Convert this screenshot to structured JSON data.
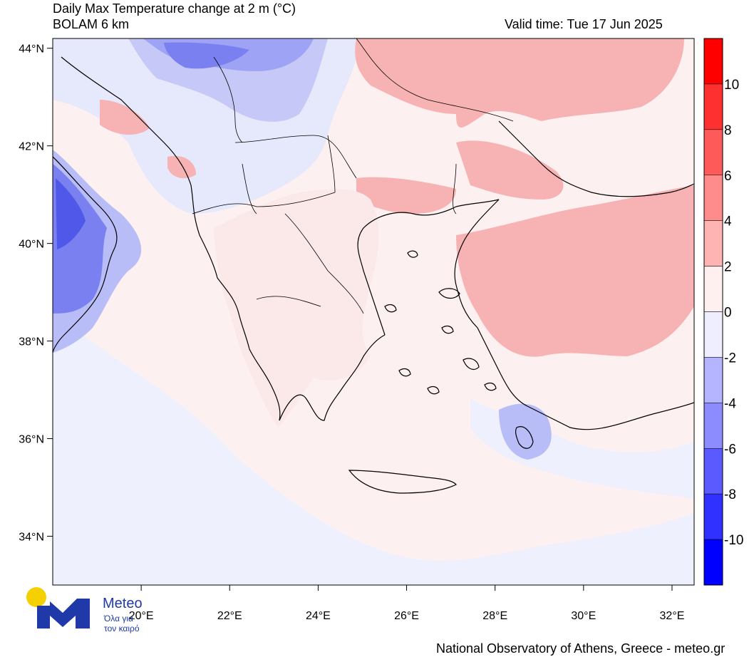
{
  "header": {
    "title_prefix": "Daily Max Temperature change at 2 m (",
    "title_unit": "°C",
    "title_suffix": ")",
    "model": "BOLAM 6 km",
    "valid_time": "Valid time: Tue 17 Jun 2025"
  },
  "footer": {
    "credit": "National Observatory of Athens, Greece - meteo.gr"
  },
  "logo": {
    "name": "Meteo",
    "tagline_1": "Όλα για",
    "tagline_2": "τον καιρό",
    "accent_color": "#1f3aa8",
    "sun_color": "#f5d000"
  },
  "map": {
    "lon_range": [
      18,
      32.5
    ],
    "lat_range": [
      33,
      44.2
    ],
    "lat_ticks": [
      {
        "value": 44,
        "label": "44°N"
      },
      {
        "value": 42,
        "label": "42°N"
      },
      {
        "value": 40,
        "label": "40°N"
      },
      {
        "value": 38,
        "label": "38°N"
      },
      {
        "value": 36,
        "label": "36°N"
      },
      {
        "value": 34,
        "label": "34°N"
      }
    ],
    "lon_ticks": [
      {
        "value": 20,
        "label": "20°E"
      },
      {
        "value": 22,
        "label": "22°E"
      },
      {
        "value": 24,
        "label": "24°E"
      },
      {
        "value": 26,
        "label": "26°E"
      },
      {
        "value": 28,
        "label": "28°E"
      },
      {
        "value": 30,
        "label": "30°E"
      },
      {
        "value": 32,
        "label": "32°E"
      }
    ]
  },
  "colorbar": {
    "levels": [
      {
        "from": 10,
        "to": 12,
        "color": "#ff0000"
      },
      {
        "from": 8,
        "to": 10,
        "color": "#ff3030"
      },
      {
        "from": 6,
        "to": 8,
        "color": "#ff5a5a"
      },
      {
        "from": 4,
        "to": 6,
        "color": "#ff8c8c"
      },
      {
        "from": 2,
        "to": 4,
        "color": "#ffb4b4"
      },
      {
        "from": 0,
        "to": 2,
        "color": "#fff0f0"
      },
      {
        "from": -2,
        "to": 0,
        "color": "#eeeeff"
      },
      {
        "from": -4,
        "to": -2,
        "color": "#b4b4ff"
      },
      {
        "from": -6,
        "to": -4,
        "color": "#8c8cff"
      },
      {
        "from": -8,
        "to": -6,
        "color": "#5a5aff"
      },
      {
        "from": -10,
        "to": -8,
        "color": "#3030ff"
      },
      {
        "from": -12,
        "to": -10,
        "color": "#0000ff"
      }
    ],
    "labels": [
      "10",
      "8",
      "6",
      "4",
      "2",
      "0",
      "-2",
      "-4",
      "-6",
      "-8",
      "-10"
    ]
  }
}
